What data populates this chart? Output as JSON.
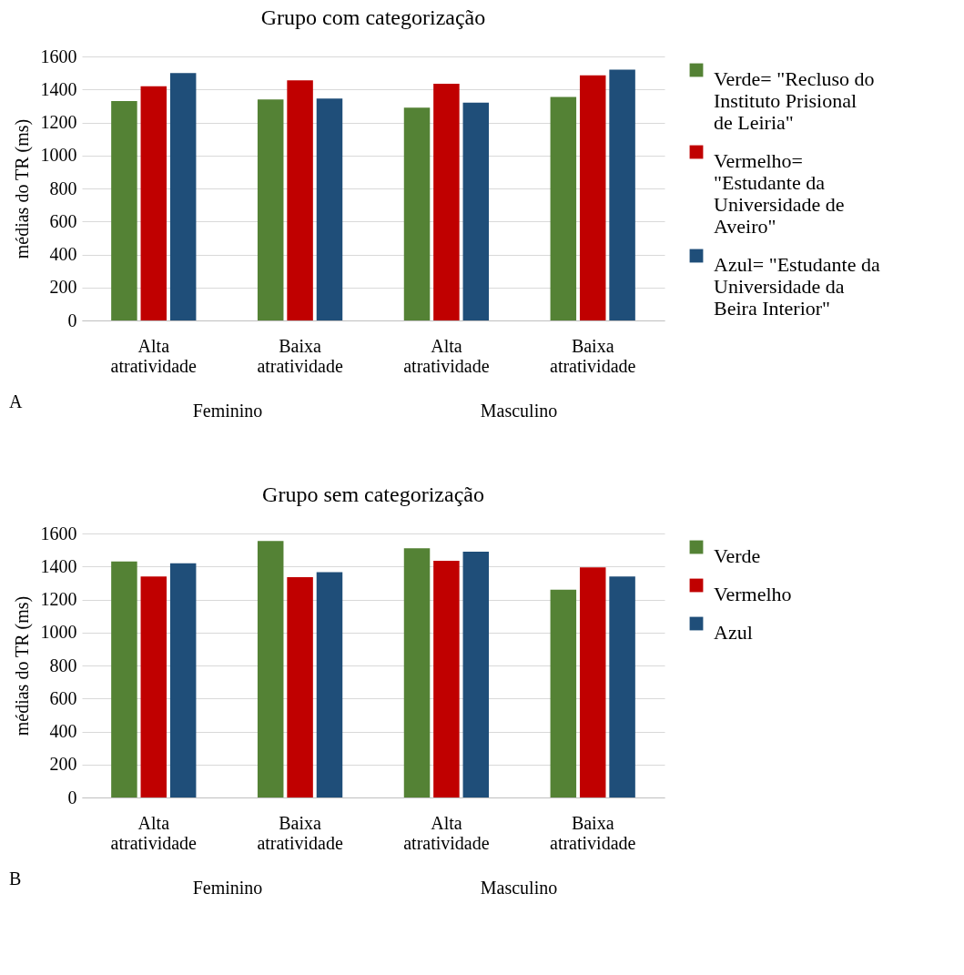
{
  "chart_data": [
    {
      "type": "bar",
      "title": "Grupo com categorização",
      "ylabel": "médias do TR (ms)",
      "categories": [
        "Alta atratividade",
        "Baixa atratividade",
        "Alta atratividade",
        "Baixa atratividade"
      ],
      "series": [
        {
          "name": "Verde= \"Recluso do Instituto Prisional de Leiria\"",
          "color": "#548235",
          "values": [
            1330,
            1340,
            1290,
            1355
          ]
        },
        {
          "name": "Vermelho= \"Estudante da Universidade de Aveiro\"",
          "color": "#c00000",
          "values": [
            1420,
            1455,
            1435,
            1485
          ]
        },
        {
          "name": "Azul= \"Estudante da Universidade da Beira Interior\"",
          "color": "#1f4e79",
          "values": [
            1500,
            1345,
            1320,
            1520
          ]
        }
      ],
      "ylim": [
        0,
        1600
      ],
      "yticks": [
        0,
        200,
        400,
        600,
        800,
        1000,
        1200,
        1400,
        1600
      ],
      "grid": "y",
      "legend": "right",
      "annotations": [
        "Feminino",
        "Masculino",
        "A"
      ]
    },
    {
      "type": "bar",
      "title": "Grupo sem categorização",
      "ylabel": "médias do TR (ms)",
      "categories": [
        "Alta atratividade",
        "Baixa atratividade",
        "Alta atratividade",
        "Baixa atratividade"
      ],
      "series": [
        {
          "name": "Verde",
          "color": "#548235",
          "values": [
            1430,
            1555,
            1510,
            1260
          ]
        },
        {
          "name": "Vermelho",
          "color": "#c00000",
          "values": [
            1340,
            1335,
            1435,
            1395
          ]
        },
        {
          "name": "Azul",
          "color": "#1f4e79",
          "values": [
            1420,
            1365,
            1490,
            1340
          ]
        }
      ],
      "ylim": [
        0,
        1600
      ],
      "yticks": [
        0,
        200,
        400,
        600,
        800,
        1000,
        1200,
        1400,
        1600
      ],
      "grid": "y",
      "legend": "right",
      "annotations": [
        "Feminino",
        "Masculino",
        "B"
      ]
    }
  ]
}
